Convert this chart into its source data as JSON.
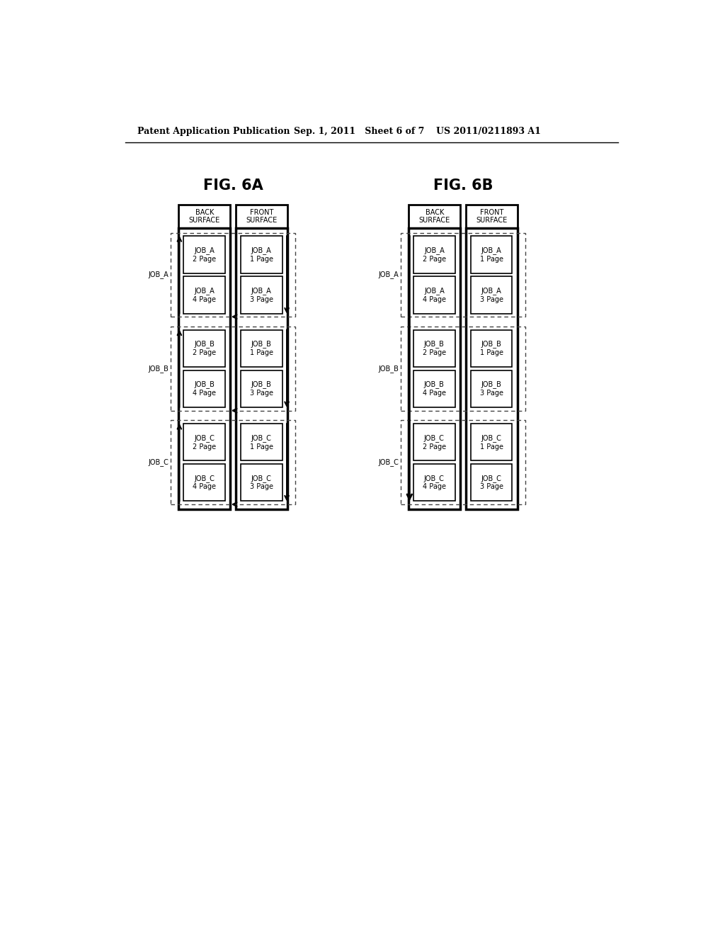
{
  "title_left": "FIG. 6A",
  "title_right": "FIG. 6B",
  "headers": [
    "BACK\nSURFACE",
    "FRONT\nSURFACE"
  ],
  "jobs": [
    "JOB_A",
    "JOB_B",
    "JOB_C"
  ],
  "pages_back": [
    [
      "JOB_A\n2 Page",
      "JOB_A\n4 Page"
    ],
    [
      "JOB_B\n2 Page",
      "JOB_B\n4 Page"
    ],
    [
      "JOB_C\n2 Page",
      "JOB_C\n4 Page"
    ]
  ],
  "pages_front": [
    [
      "JOB_A\n1 Page",
      "JOB_A\n3 Page"
    ],
    [
      "JOB_B\n1 Page",
      "JOB_B\n3 Page"
    ],
    [
      "JOB_C\n1 Page",
      "JOB_C\n3 Page"
    ]
  ],
  "header_text_size": 7,
  "cell_text_size": 7,
  "label_text_size": 7,
  "title_text_size": 15,
  "patent_left": "Patent Application Publication",
  "patent_mid": "Sep. 1, 2011   Sheet 6 of 7",
  "patent_right": "US 2011/0211893 A1",
  "patent_text_size": 9,
  "bg_color": "#ffffff"
}
